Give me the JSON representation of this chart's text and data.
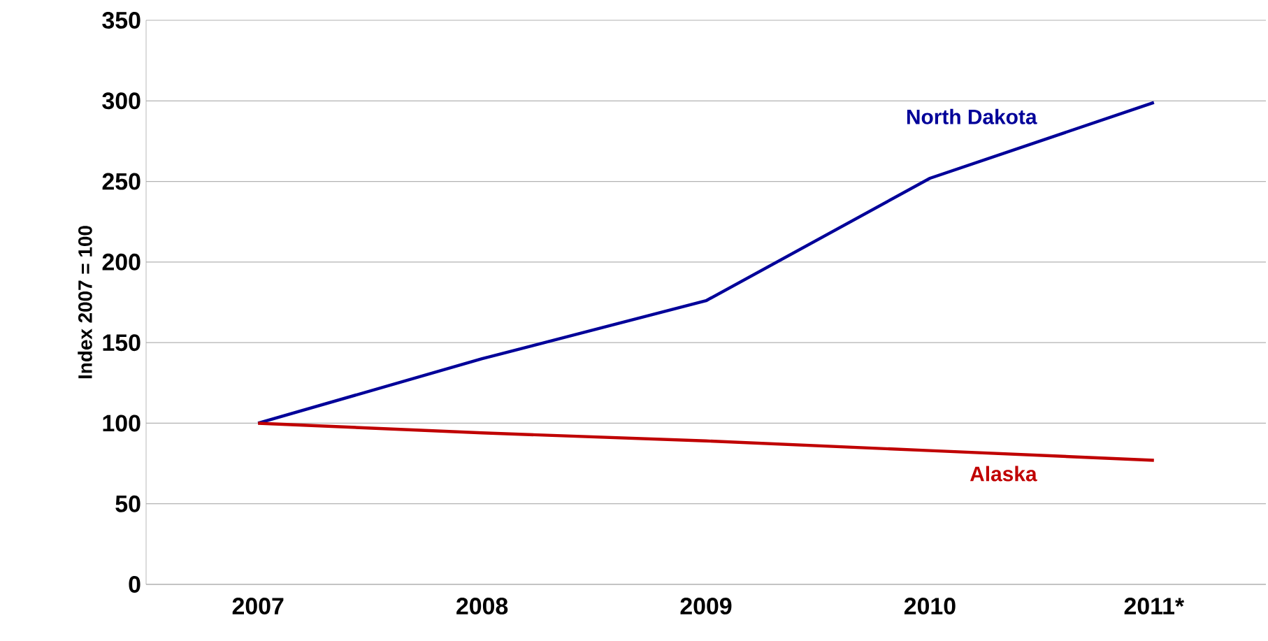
{
  "chart_data": {
    "type": "line",
    "ylabel": "Index 2007 = 100",
    "categories": [
      "2007",
      "2008",
      "2009",
      "2010",
      "2011*"
    ],
    "series": [
      {
        "name": "North Dakota",
        "color": "#000099",
        "values": [
          100,
          140,
          176,
          252,
          299
        ]
      },
      {
        "name": "Alaska",
        "color": "#c00000",
        "values": [
          100,
          94,
          89,
          83,
          77
        ]
      }
    ],
    "ylim": [
      0,
      350
    ],
    "yticks": [
      0,
      50,
      100,
      150,
      200,
      250,
      300,
      350
    ],
    "grid": "y",
    "marker": "none",
    "line_style": "solid"
  }
}
